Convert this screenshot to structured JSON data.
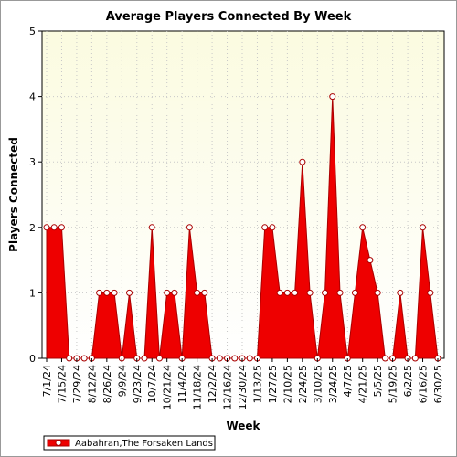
{
  "chart_data": {
    "type": "area",
    "title": "Average Players Connected By Week",
    "xlabel": "Week",
    "ylabel": "Players Connected",
    "ylim": [
      0,
      5
    ],
    "yticks": [
      0,
      1,
      2,
      3,
      4,
      5
    ],
    "grid": true,
    "legend_position": "bottom-left",
    "colors": {
      "plot_background_top": "#fbfbe0",
      "plot_background_bottom": "#ffffff",
      "fill": "#ee0000",
      "line": "#aa0000",
      "marker_fill": "#ffffff",
      "grid": "#c8c8c8"
    },
    "x": [
      "7/1/24",
      "7/8/24",
      "7/15/24",
      "7/22/24",
      "7/29/24",
      "8/5/24",
      "8/12/24",
      "8/19/24",
      "8/26/24",
      "9/2/24",
      "9/9/24",
      "9/16/24",
      "9/23/24",
      "9/30/24",
      "10/7/24",
      "10/14/24",
      "10/21/24",
      "10/28/24",
      "11/4/24",
      "11/11/24",
      "11/18/24",
      "11/25/24",
      "12/2/24",
      "12/9/24",
      "12/16/24",
      "12/23/24",
      "12/30/24",
      "1/6/25",
      "1/13/25",
      "1/20/25",
      "1/27/25",
      "2/3/25",
      "2/10/25",
      "2/17/25",
      "2/24/25",
      "3/3/25",
      "3/10/25",
      "3/17/25",
      "3/24/25",
      "3/31/25",
      "4/7/25",
      "4/14/25",
      "4/21/25",
      "4/28/25",
      "5/5/25",
      "5/12/25",
      "5/19/25",
      "5/26/25",
      "6/2/25",
      "6/9/25",
      "6/16/25",
      "6/23/25",
      "6/30/25"
    ],
    "x_tick_labels": [
      "7/1/24",
      "7/15/24",
      "7/29/24",
      "8/12/24",
      "8/26/24",
      "9/9/24",
      "9/23/24",
      "10/7/24",
      "10/21/24",
      "11/4/24",
      "11/18/24",
      "12/2/24",
      "12/16/24",
      "12/30/24",
      "1/13/25",
      "1/27/25",
      "2/10/25",
      "2/24/25",
      "3/10/25",
      "3/24/25",
      "4/7/25",
      "4/21/25",
      "5/5/25",
      "5/19/25",
      "6/2/25",
      "6/16/25",
      "6/30/25"
    ],
    "series": [
      {
        "name": "Aabahran,The Forsaken Lands",
        "values": [
          2,
          2,
          2,
          0,
          0,
          0,
          0,
          1,
          1,
          1,
          0,
          1,
          0,
          0,
          2,
          0,
          1,
          1,
          0,
          2,
          1,
          1,
          0,
          0,
          0,
          0,
          0,
          0,
          0,
          2,
          2,
          1,
          1,
          1,
          3,
          1,
          0,
          1,
          4,
          1,
          0,
          1,
          2,
          1.5,
          1,
          0,
          0,
          1,
          0,
          0,
          2,
          1,
          0
        ]
      }
    ]
  }
}
